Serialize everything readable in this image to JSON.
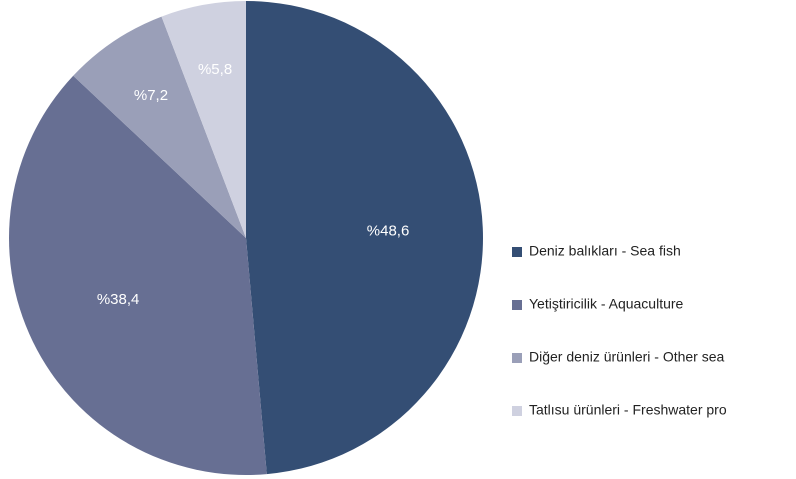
{
  "chart_data": {
    "type": "pie",
    "categories": [
      "Deniz balıkları - Sea fish",
      "Yetiştiricilik - Aquaculture",
      "Diğer deniz ürünleri - Other sea",
      "Tatlısu ürünleri - Freshwater pro"
    ],
    "values": [
      48.6,
      38.4,
      7.2,
      5.8
    ],
    "value_labels": [
      "%48,6",
      "%38,4",
      "%7,2",
      "%5,8"
    ],
    "colors": [
      "#344e74",
      "#676f93",
      "#9a9fb8",
      "#cfd1e0"
    ],
    "legend": "right"
  }
}
